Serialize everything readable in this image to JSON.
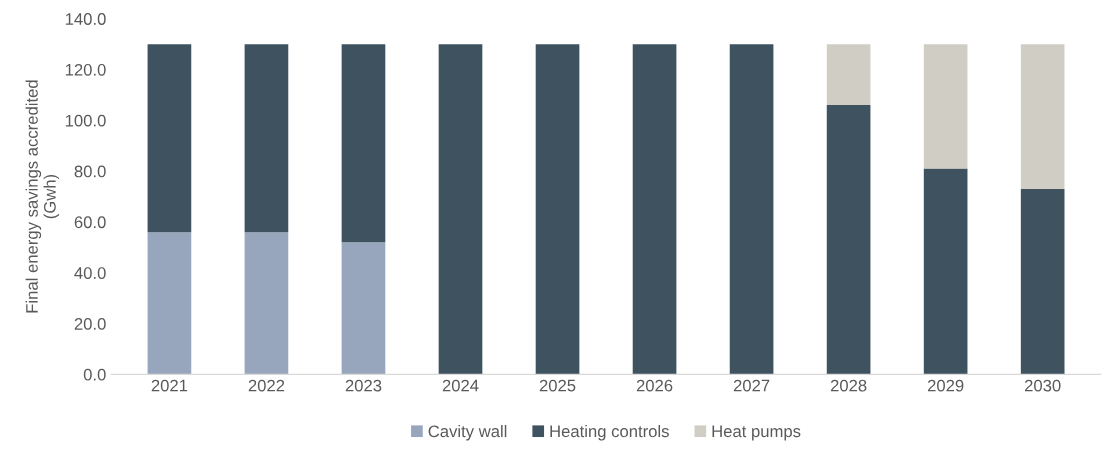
{
  "chart_data": {
    "type": "bar",
    "stacked": true,
    "ylabel": "Final energy savings accredited\n(Gwh)",
    "categories": [
      "2021",
      "2022",
      "2023",
      "2024",
      "2025",
      "2026",
      "2027",
      "2028",
      "2029",
      "2030"
    ],
    "series": [
      {
        "name": "Cavity wall",
        "color": "#97a6bd",
        "values": [
          56,
          56,
          52,
          0,
          0,
          0,
          0,
          0,
          0,
          0
        ]
      },
      {
        "name": "Heating controls",
        "color": "#3e5260",
        "values": [
          74,
          74,
          78,
          130,
          130,
          130,
          130,
          106,
          81,
          73
        ]
      },
      {
        "name": "Heat pumps",
        "color": "#d0cec4",
        "values": [
          0,
          0,
          0,
          0,
          0,
          0,
          0,
          24,
          49,
          57
        ]
      }
    ],
    "ylim": [
      0,
      140
    ],
    "yticks": [
      {
        "value": 0,
        "label": "0.0"
      },
      {
        "value": 20,
        "label": "20.0"
      },
      {
        "value": 40,
        "label": "40.0"
      },
      {
        "value": 60,
        "label": "60.0"
      },
      {
        "value": 80,
        "label": "80.0"
      },
      {
        "value": 100,
        "label": "100.0"
      },
      {
        "value": 120,
        "label": "120.0"
      },
      {
        "value": 140,
        "label": "140.0"
      }
    ],
    "grid": false,
    "legend": "bottom"
  }
}
